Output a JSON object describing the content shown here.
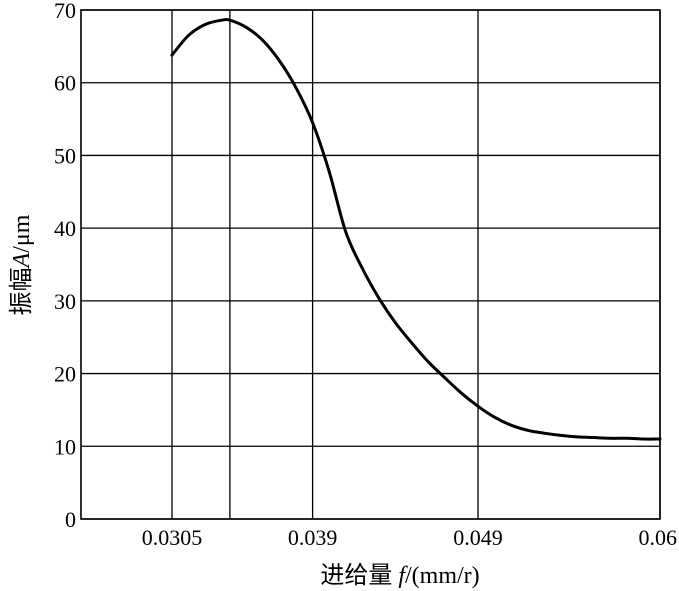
{
  "chart_data": {
    "type": "line",
    "xlabel": "进给量 f/(mm/r)",
    "xlabel_parts": {
      "prefix": "进给量 ",
      "symbol": "f",
      "unit": "/(mm/r)"
    },
    "ylabel": "振幅A/μm",
    "ylabel_parts": {
      "prefix": "振幅",
      "symbol": "A",
      "unit": "/μm"
    },
    "x_tick_labels": [
      "0.0305",
      "0.039",
      "0.049",
      "0.06"
    ],
    "x_ticks": [
      0.0305,
      0.039,
      0.049,
      0.06
    ],
    "xlim": [
      0.025,
      0.06
    ],
    "y_ticks": [
      0,
      10,
      20,
      30,
      40,
      50,
      60,
      70
    ],
    "ylim": [
      0,
      70
    ],
    "grid": true,
    "extra_vertical_line_x": 0.034,
    "series": [
      {
        "x": [
          0.0305,
          0.0315,
          0.0325,
          0.0335,
          0.034,
          0.035,
          0.036,
          0.037,
          0.038,
          0.039,
          0.04,
          0.041,
          0.042,
          0.043,
          0.044,
          0.045,
          0.046,
          0.047,
          0.048,
          0.049,
          0.05,
          0.051,
          0.052,
          0.053,
          0.054,
          0.055,
          0.056,
          0.057,
          0.058,
          0.059,
          0.06
        ],
        "y": [
          63.8,
          66.5,
          68.0,
          68.6,
          68.6,
          67.6,
          65.8,
          63.0,
          59.3,
          54.5,
          47.8,
          39.5,
          34.5,
          30.4,
          27.0,
          24.2,
          21.6,
          19.4,
          17.3,
          15.5,
          14.0,
          12.9,
          12.2,
          11.8,
          11.5,
          11.3,
          11.2,
          11.1,
          11.1,
          11.0,
          11.0
        ]
      }
    ]
  }
}
